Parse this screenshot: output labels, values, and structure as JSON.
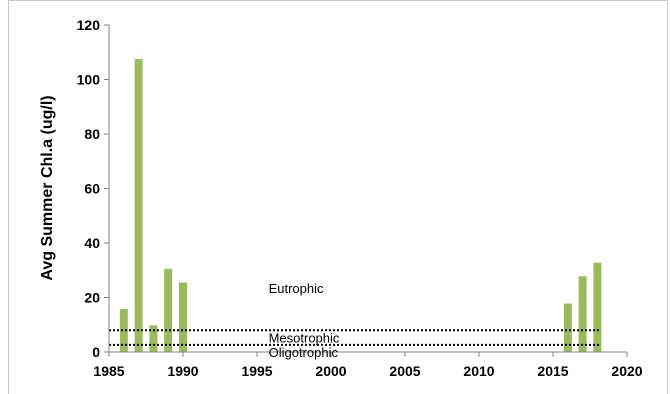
{
  "chart_data": {
    "type": "bar",
    "title": "",
    "xlabel": "",
    "ylabel": "Avg Summer Chl.a  (ug/l)",
    "xlim": [
      1985,
      2020
    ],
    "ylim": [
      0,
      120
    ],
    "xticks": [
      1985,
      1990,
      1995,
      2000,
      2005,
      2010,
      2015,
      2020
    ],
    "yticks": [
      0,
      20,
      40,
      60,
      80,
      100,
      120
    ],
    "grid": false,
    "legend": "none",
    "bar_color": "#9bbb59",
    "x": [
      1986,
      1987,
      1988,
      1989,
      1990,
      2016,
      2017,
      2018
    ],
    "values": [
      15.8,
      107.5,
      9.8,
      30.5,
      25.5,
      17.8,
      27.8,
      32.8
    ],
    "reference_lines": [
      {
        "y": 2.6,
        "style": "dotted"
      },
      {
        "y": 8,
        "style": "dotted"
      }
    ],
    "annotations": [
      {
        "text": "Eutrophic",
        "x": 1997,
        "y": 23.5
      },
      {
        "text": "Mesotrophic",
        "x": 1997,
        "y": 5.3
      },
      {
        "text": "Oligotrophic",
        "x": 1997,
        "y": 0
      }
    ]
  }
}
